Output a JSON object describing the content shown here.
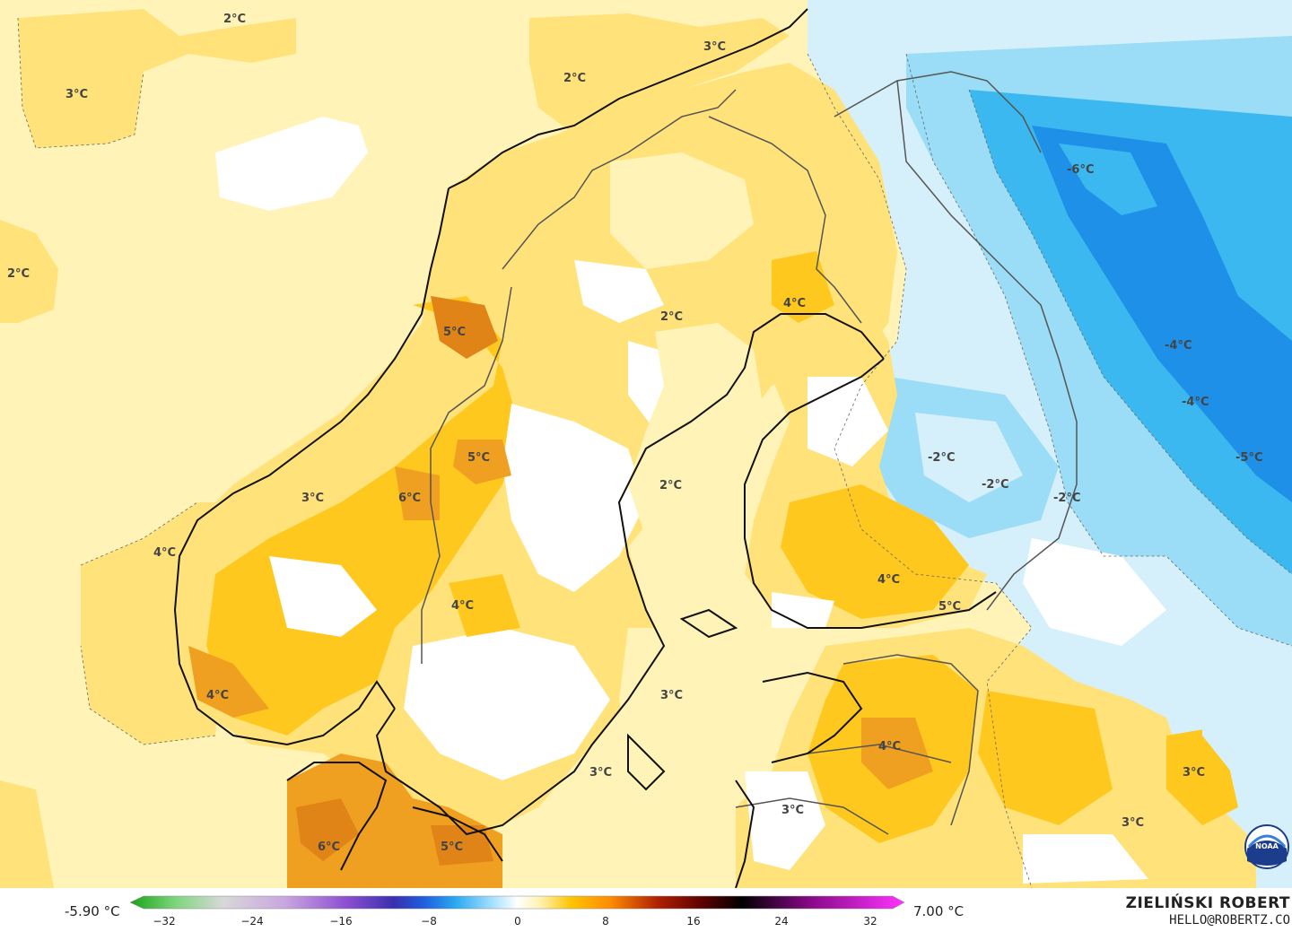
{
  "legend": {
    "min_label": "-5.90 °C",
    "max_label": "7.00 °C",
    "ticks": [
      "−32",
      "−24",
      "−16",
      "−8",
      "0",
      "8",
      "16",
      "24",
      "32"
    ],
    "colors": [
      "#1aa31a",
      "#7fd67f",
      "#d8d8d8",
      "#c9a6e0",
      "#8c4fd0",
      "#3a2fb0",
      "#1e5fe0",
      "#2aa8f0",
      "#a9e3ff",
      "#ffffff",
      "#fff2b0",
      "#ffc400",
      "#ff8c00",
      "#b22200",
      "#5a0000",
      "#000000",
      "#8a0a8a",
      "#ff33ff"
    ]
  },
  "credits": {
    "author": "ZIELIŃSKI ROBERT",
    "email": "HELLO@ROBERTZ.CO",
    "logo_text": "NOAA"
  },
  "temperature_labels": [
    "2°C",
    "3°C",
    "2°C",
    "3°C",
    "2°C",
    "2°C",
    "4°C",
    "5°C",
    "-6°C",
    "-4°C",
    "-4°C",
    "5°C",
    "-2°C",
    "-2°C",
    "-2°C",
    "-5°C",
    "3°C",
    "6°C",
    "2°C",
    "4°C",
    "4°C",
    "4°C",
    "5°C",
    "4°C",
    "3°C",
    "4°C",
    "3°C",
    "3°C",
    "3°C",
    "6°C",
    "5°C",
    "3°C"
  ],
  "palette": {
    "light_yellow": "#fff3b8",
    "yellow": "#ffe27a",
    "gold": "#ffc81e",
    "orange": "#f0a020",
    "dark_orange": "#e08418",
    "white": "#ffffff",
    "ice": "#d6f0fb",
    "light_blue": "#9bdcf6",
    "blue": "#3cb8f0",
    "deep_blue": "#1e90e8",
    "coast": "#111111",
    "border": "#555555"
  }
}
